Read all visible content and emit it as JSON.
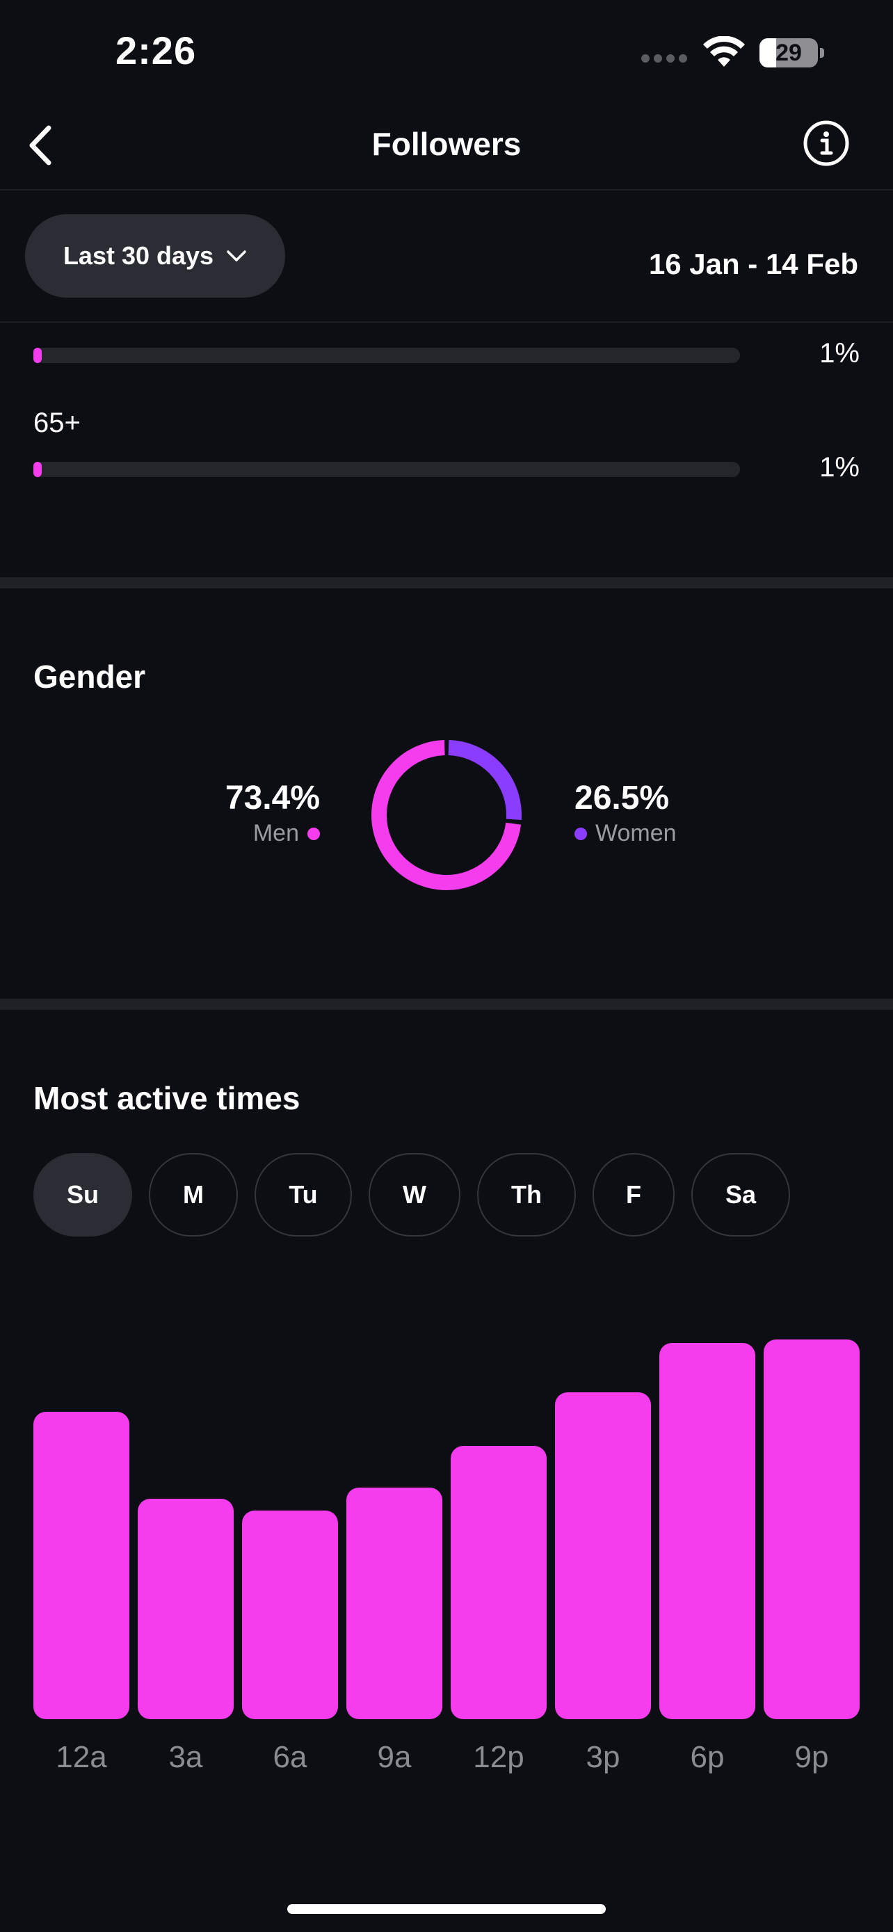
{
  "status_bar": {
    "time": "2:26",
    "battery_level": "29",
    "battery_fraction": 0.29,
    "icons": [
      "signal-dots-icon",
      "wifi-icon",
      "battery-icon"
    ]
  },
  "nav": {
    "title": "Followers",
    "back_icon": "chevron-left-icon",
    "info_icon": "info-icon"
  },
  "filter": {
    "range_label": "Last 30 days",
    "range_icon": "chevron-down-icon",
    "date_range": "16 Jan - 14 Feb"
  },
  "age": {
    "rows": [
      {
        "label": "",
        "value": "1%",
        "fraction": 0.01
      },
      {
        "label": "65+",
        "value": "1%",
        "fraction": 0.01
      }
    ]
  },
  "gender": {
    "title": "Gender",
    "men": {
      "pct": "73.4%",
      "label": "Men",
      "value": 73.4,
      "color": "#f53ded"
    },
    "women": {
      "pct": "26.5%",
      "label": "Women",
      "value": 26.5,
      "color": "#8a3dff"
    }
  },
  "active_times": {
    "title": "Most active times",
    "days": [
      {
        "label": "Su",
        "selected": true
      },
      {
        "label": "M",
        "selected": false
      },
      {
        "label": "Tu",
        "selected": false
      },
      {
        "label": "W",
        "selected": false
      },
      {
        "label": "Th",
        "selected": false
      },
      {
        "label": "F",
        "selected": false
      },
      {
        "label": "Sa",
        "selected": false
      }
    ]
  },
  "chart_data": {
    "type": "bar",
    "categories": [
      "12a",
      "3a",
      "6a",
      "9a",
      "12p",
      "3p",
      "6p",
      "9p"
    ],
    "values": [
      81,
      58,
      55,
      61,
      72,
      86,
      99,
      100
    ],
    "ylim": [
      0,
      100
    ],
    "color": "#f53ded",
    "grid": false
  },
  "colors": {
    "background": "#0c0e13",
    "accent_pink": "#f53ded",
    "accent_purple": "#8a3dff",
    "pill": "#2a2d33"
  }
}
